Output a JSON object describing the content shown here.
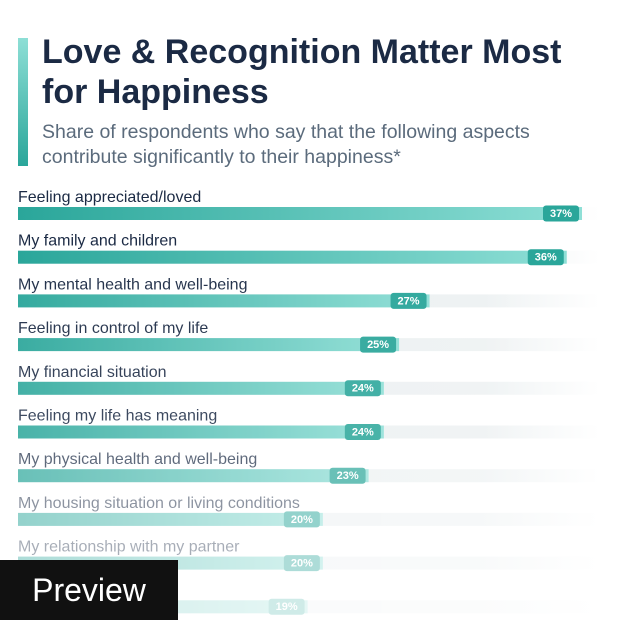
{
  "chart_data": {
    "type": "bar",
    "title": "Love & Recognition Matter Most for Happiness",
    "subtitle": "Share of respondents who say that the following aspects contribute significantly to their happiness*",
    "categories": [
      "Feeling appreciated/loved",
      "My family and children",
      "My mental health and well-being",
      "Feeling in control of my life",
      "My financial situation",
      "Feeling my life has meaning",
      "My physical health and well-being",
      "My housing situation or living conditions",
      "My relationship with my partner",
      null
    ],
    "values": [
      37,
      36,
      27,
      25,
      24,
      24,
      23,
      20,
      20,
      19
    ],
    "value_labels": [
      "37%",
      "36%",
      "27%",
      "25%",
      "24%",
      "24%",
      "23%",
      "20%",
      "20%",
      "19%"
    ],
    "color": "#2aa69a"
  },
  "badge": "Preview"
}
